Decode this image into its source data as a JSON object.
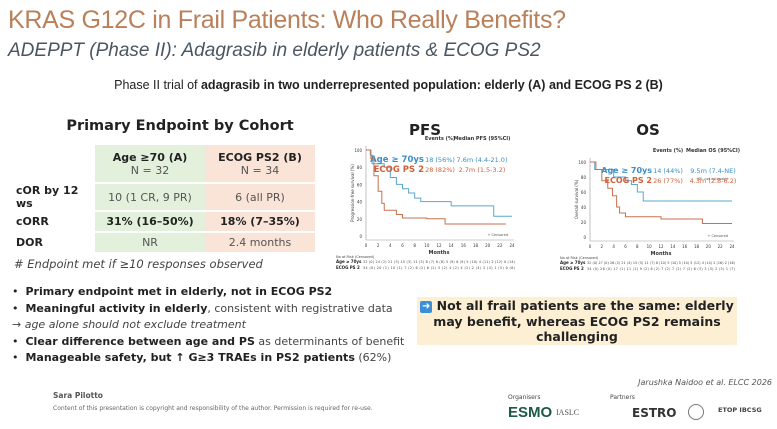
{
  "title": "KRAS G12C in Frail Patients: Who Really Benefits?",
  "subtitle": "ADEPPT (Phase II): Adagrasib in elderly patients & ECOG PS2",
  "intro": {
    "plain": "Phase II trial of ",
    "bold": "adagrasib in two underrepresented population: elderly (A) and ECOG PS 2 (B)"
  },
  "table": {
    "title": "Primary Endpoint by Cohort",
    "headers": [
      {
        "name": "Age ≥70 (A)",
        "n": "N = 32"
      },
      {
        "name": "ECOG PS2 (B)",
        "n": "N = 34"
      }
    ],
    "rows": [
      {
        "label": "cOR by 12 ws",
        "a": "10 (1 CR, 9 PR)",
        "b": "6 (all PR)"
      },
      {
        "label": "cORR",
        "a": "31% (16–50%)",
        "b": "18% (7–35%)"
      },
      {
        "label": "DOR",
        "a": "NR",
        "b": "2.4 months"
      }
    ],
    "footnote": "# Endpoint met if ≥10 responses observed"
  },
  "bullets": [
    {
      "bold": "Primary endpoint met in elderly, not in ECOG PS2",
      "rest": ""
    },
    {
      "bold": "Meaningful activity in elderly",
      "rest": ", consistent with registrative data"
    },
    {
      "italic": "→ age alone should not exclude treatment"
    },
    {
      "bold": "Clear difference between age and PS",
      "rest": " as determinants of benefit"
    },
    {
      "bold": "Manageable safety, but ↑ G≥3 TRAEs in PS2 patients",
      "rest": " (62%)"
    }
  ],
  "colors": {
    "age": "#3b8ec4",
    "ecog": "#d0603a",
    "title": "#b9805a"
  },
  "chart_data": [
    {
      "type": "line",
      "title": "PFS",
      "ylabel": "Progression-free survival (%)",
      "xlabel": "Months",
      "xlim": [
        0,
        24
      ],
      "ylim": [
        0,
        100
      ],
      "xticks": [
        0,
        2,
        4,
        6,
        8,
        10,
        12,
        14,
        16,
        18,
        20,
        22,
        24
      ],
      "yticks": [
        0,
        20,
        40,
        60,
        80,
        100
      ],
      "events_header": "Events (%)",
      "median_header": "Median PFS (95%CI)",
      "censored_label": "+ Censored",
      "risk_label": "No at Risk (Censored)",
      "series": [
        {
          "name": "Age ≥ 70ys",
          "events": "18 (56%)",
          "median": "7.6m (4.4-21.0)",
          "color": "#5aa7cf",
          "steps": [
            [
              0,
              100
            ],
            [
              0.7,
              94
            ],
            [
              1,
              84
            ],
            [
              3,
              80
            ],
            [
              4,
              68
            ],
            [
              5,
              60
            ],
            [
              6,
              55
            ],
            [
              7,
              50
            ],
            [
              8,
              44
            ],
            [
              9,
              40
            ],
            [
              14,
              35
            ],
            [
              21,
              23
            ],
            [
              24,
              23
            ]
          ],
          "risk": "32 (0) 24 (2) 21 (3) 15 (3) 11 (5) 8 (7) 8 (8) 5 (9) 6 (9) 5 (10) 4 (11) 2 (12) 0 (14)"
        },
        {
          "name": "ECOG PS 2",
          "events": "28 (82%)",
          "median": "2.7m (1.5-3.2)",
          "color": "#c9704f",
          "steps": [
            [
              0,
              100
            ],
            [
              0.8,
              90
            ],
            [
              1.3,
              70
            ],
            [
              2,
              52
            ],
            [
              2.6,
              38
            ],
            [
              3,
              30
            ],
            [
              5,
              25
            ],
            [
              6,
              21
            ],
            [
              10,
              20
            ],
            [
              13,
              14
            ],
            [
              23,
              14
            ]
          ],
          "risk": "34 (0) 20 (1) 10 (1) 7 (2) 6 (2) 6 (2) 5 (2) 4 (2) 4 (2) 2 (4) 2 (4) 1 (5) 0 (6)"
        }
      ]
    },
    {
      "type": "line",
      "title": "OS",
      "ylabel": "Overall survival (%)",
      "xlabel": "Months",
      "xlim": [
        0,
        24
      ],
      "ylim": [
        0,
        100
      ],
      "xticks": [
        0,
        2,
        4,
        6,
        8,
        10,
        12,
        14,
        16,
        18,
        20,
        22,
        24
      ],
      "yticks": [
        0,
        20,
        40,
        60,
        80,
        100
      ],
      "events_header": "Events (%)",
      "median_header": "Median OS (95%CI)",
      "censored_label": "+ Censored",
      "risk_label": "No at Risk (Censored)",
      "note": "NE: not estimable",
      "series": [
        {
          "name": "Age ≥ 70ys",
          "events": "14 (44%)",
          "median": "9.5m (7.4-NE)",
          "color": "#5aa7cf",
          "steps": [
            [
              0,
              100
            ],
            [
              0.8,
              90
            ],
            [
              4,
              80
            ],
            [
              6,
              75
            ],
            [
              7,
              70
            ],
            [
              8,
              60
            ],
            [
              9,
              48
            ],
            [
              24,
              48
            ]
          ],
          "risk": "32 (0) 27 (0) 26 (2) 21 (4) 15 (5) 11 (7) 8 (10) 5 (10) 5 (10) 5 (12) 4 (14) 2 (16) 2 (16)"
        },
        {
          "name": "ECOG PS 2",
          "events": "26 (77%)",
          "median": "4.3m (2.8-6.2)",
          "color": "#c9704f",
          "steps": [
            [
              0,
              100
            ],
            [
              1,
              90
            ],
            [
              2,
              75
            ],
            [
              3,
              65
            ],
            [
              3.8,
              55
            ],
            [
              4.5,
              40
            ],
            [
              5,
              32
            ],
            [
              6,
              27
            ],
            [
              12,
              24
            ],
            [
              19,
              18
            ],
            [
              24,
              18
            ]
          ],
          "risk": "34 (0) 26 (0) 17 (1) 11 (1) 9 (2) 8 (2) 7 (2) 7 (2) 7 (2) 6 (3) 3 (3) 2 (5) 1 (7)"
        }
      ]
    }
  ],
  "callout": "Not all frail patients are the same: elderly may benefit, whereas ECOG PS2 remains challenging",
  "footer": {
    "author": "Sara Pilotto",
    "copyright": "Content of this presentation is copyright and responsibility of the author. Permission is required for re-use.",
    "citation": "Jarushka Naidoo et al. ELCC 2026",
    "organisers_label": "Organisers",
    "partners_label": "Partners",
    "logos": [
      "ESMO",
      "IASLC",
      "ESTRO",
      "ETOP IBCSG"
    ]
  }
}
